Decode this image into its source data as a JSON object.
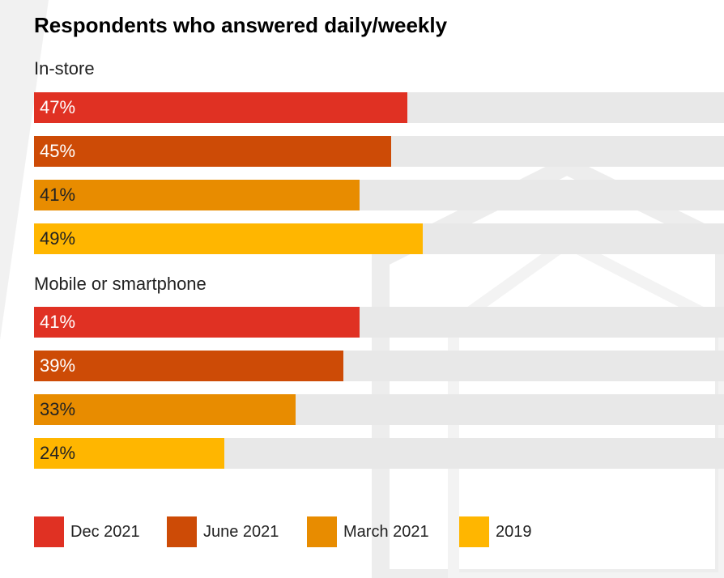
{
  "chart_data": {
    "type": "bar",
    "orientation": "horizontal",
    "title": "Respondents who answered daily/weekly",
    "xlim": [
      0,
      100
    ],
    "unit": "%",
    "groups": [
      {
        "label": "In-store",
        "bars": [
          {
            "series": "Dec 2021",
            "value": 47,
            "label": "47%"
          },
          {
            "series": "June 2021",
            "value": 45,
            "label": "45%"
          },
          {
            "series": "March 2021",
            "value": 41,
            "label": "41%"
          },
          {
            "series": "2019",
            "value": 49,
            "label": "49%"
          }
        ]
      },
      {
        "label": "Mobile or smartphone",
        "bars": [
          {
            "series": "Dec 2021",
            "value": 41,
            "label": "41%"
          },
          {
            "series": "June 2021",
            "value": 39,
            "label": "39%"
          },
          {
            "series": "March 2021",
            "value": 33,
            "label": "33%"
          },
          {
            "series": "2019",
            "value": 24,
            "label": "24%"
          }
        ]
      }
    ],
    "series": [
      {
        "name": "Dec 2021",
        "color": "#e03123",
        "text_color": "#ffffff"
      },
      {
        "name": "June 2021",
        "color": "#cd4b06",
        "text_color": "#ffffff"
      },
      {
        "name": "March 2021",
        "color": "#e88c00",
        "text_color": "#222222"
      },
      {
        "name": "2019",
        "color": "#ffb600",
        "text_color": "#222222"
      }
    ],
    "legend_position": "bottom",
    "track_color": "#e8e8e8"
  }
}
